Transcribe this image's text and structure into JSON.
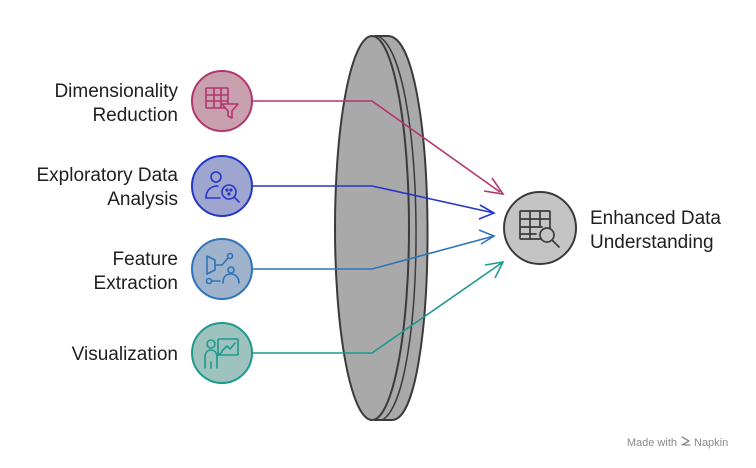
{
  "inputs": [
    {
      "label_line1": "Dimensionality",
      "label_line2": "Reduction",
      "icon": "table-filter-icon",
      "fill": "#c9a0ad",
      "stroke": "#b3356e"
    },
    {
      "label_line1": "Exploratory Data",
      "label_line2": "Analysis",
      "icon": "user-search-icon",
      "fill": "#9ea5cf",
      "stroke": "#2536c8"
    },
    {
      "label_line1": "Feature",
      "label_line2": "Extraction",
      "icon": "feature-extraction-icon",
      "fill": "#9fb3cc",
      "stroke": "#2d74bb"
    },
    {
      "label_line1": "Visualization",
      "label_line2": "",
      "icon": "presenter-chart-icon",
      "fill": "#9ec3bf",
      "stroke": "#1d9a8d"
    }
  ],
  "output": {
    "label_line1": "Enhanced Data",
    "label_line2": "Understanding",
    "icon": "table-magnify-icon",
    "fill": "#c4c4c4",
    "stroke": "#3a3a3a"
  },
  "lens": {
    "fill": "#a9a9a9",
    "stroke": "#3b3b3b"
  },
  "watermark": {
    "prefix": "Made with",
    "brand": "Napkin"
  }
}
